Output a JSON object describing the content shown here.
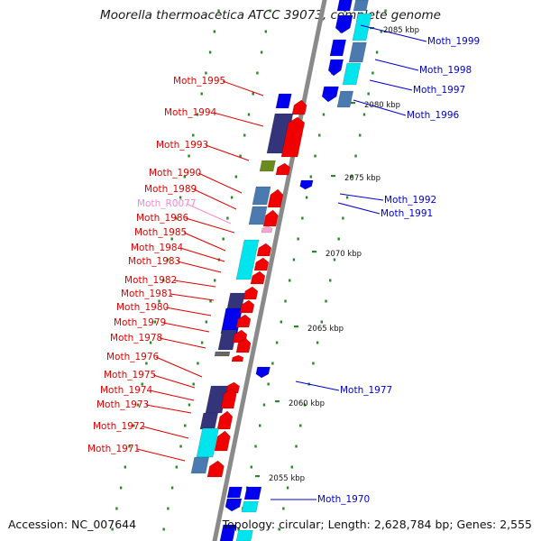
{
  "title": "Moorella thermoacetica ATCC 39073, complete genome",
  "accession": "Accession: NC_007644",
  "summary": "Topology: circular; Length: 2,628,784 bp; Genes: 2,555",
  "colors": {
    "backbone": "#8a8a8a",
    "forward_label": "#e00000",
    "reverse_label": "#0000d0",
    "rna_label": "#f58ad0",
    "tick": "#2a8a2a",
    "gene_red": "#f00000",
    "gene_blue": "#0000ee",
    "gene_navy": "#34347a",
    "gene_slate": "#4a7ab0",
    "gene_cyan": "#00e4ee",
    "gene_olive": "#6b8a20",
    "gene_pink": "#f3a6cf"
  },
  "scale_labels": [
    "2085 kbp",
    "2080 kbp",
    "2075 kbp",
    "2070 kbp",
    "2065 kbp",
    "2060 kbp",
    "2055 kbp"
  ],
  "forward_genes": [
    "Moth_1995",
    "Moth_1994",
    "Moth_1993",
    "Moth_1990",
    "Moth_1989",
    "Moth_R0077",
    "Moth_1986",
    "Moth_1985",
    "Moth_1984",
    "Moth_1983",
    "Moth_1982",
    "Moth_1981",
    "Moth_1980",
    "Moth_1979",
    "Moth_1978",
    "Moth_1976",
    "Moth_1975",
    "Moth_1974",
    "Moth_1973",
    "Moth_1972",
    "Moth_1971"
  ],
  "reverse_genes": [
    "Moth_1999",
    "Moth_1998",
    "Moth_1997",
    "Moth_1996",
    "Moth_1992",
    "Moth_1991",
    "Moth_1977",
    "Moth_1970"
  ]
}
